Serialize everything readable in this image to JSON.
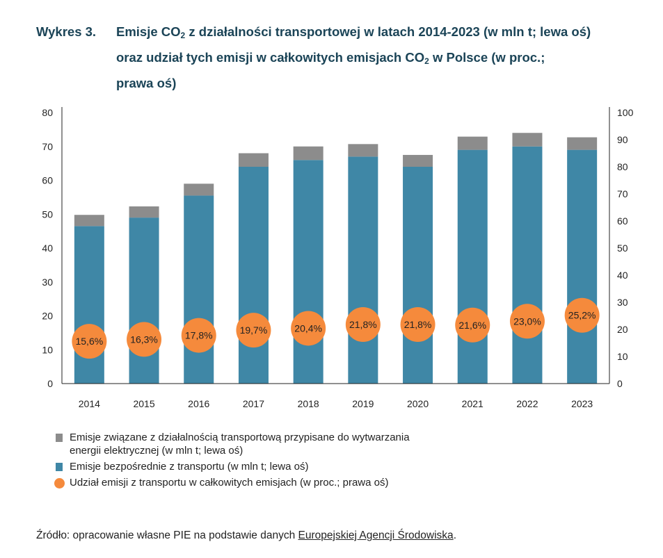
{
  "title": {
    "label": "Wykres 3.",
    "line1_pre": "Emisje CO",
    "line1_sub": "2",
    "line1_post": " z działalności transportowej w latach 2014-2023 (w mln t; lewa oś)",
    "line2_pre": "oraz udział tych emisji w całkowitych emisjach CO",
    "line2_sub": "2",
    "line2_post": " w Polsce (w proc.;",
    "line3": "prawa oś)"
  },
  "colors": {
    "direct": "#3f87a6",
    "electric": "#8c8c8c",
    "share": "#f58a3c",
    "axis": "#222222"
  },
  "chart_data": {
    "type": "bar",
    "stacked": true,
    "categories": [
      "2014",
      "2015",
      "2016",
      "2017",
      "2018",
      "2019",
      "2020",
      "2021",
      "2022",
      "2023"
    ],
    "series": [
      {
        "name": "Emisje bezpośrednie z transportu (w mln t; lewa oś)",
        "axis": "left",
        "values": [
          46.5,
          49,
          55.5,
          64,
          66,
          67,
          64,
          69,
          70,
          69
        ]
      },
      {
        "name": "Emisje związane z działalnością transportową przypisane do wytwarzania energii elektrycznej (w mln t; lewa oś)",
        "axis": "left",
        "values": [
          3.3,
          3.3,
          3.5,
          4,
          4,
          3.7,
          3.5,
          3.9,
          4,
          3.7
        ]
      },
      {
        "name": "Udział emisji z transportu w całkowitych emisjach (w proc.; prawa oś)",
        "axis": "right",
        "type": "scatter",
        "values": [
          15.6,
          16.3,
          17.8,
          19.7,
          20.4,
          21.8,
          21.8,
          21.6,
          23.0,
          25.2
        ],
        "labels": [
          "15,6%",
          "16,3%",
          "17,8%",
          "19,7%",
          "20,4%",
          "21,8%",
          "21,8%",
          "21,6%",
          "23,0%",
          "25,2%"
        ]
      }
    ],
    "left_axis": {
      "range": [
        0,
        80
      ],
      "ticks": [
        "0",
        "10",
        "20",
        "30",
        "40",
        "50",
        "60",
        "70",
        "80"
      ]
    },
    "right_axis": {
      "range": [
        0,
        100
      ],
      "ticks": [
        "0",
        "10",
        "20",
        "30",
        "40",
        "50",
        "60",
        "70",
        "80",
        "90",
        "100"
      ]
    },
    "grid": false,
    "legend_position": "bottom"
  },
  "legend": {
    "electric_line1": "Emisje związane z działalnością transportową przypisane do wytwarzania",
    "electric_line2": "energii elektrycznej (w mln t; lewa oś)",
    "direct": "Emisje bezpośrednie z transportu (w mln t; lewa oś)",
    "share": "Udział emisji z transportu w całkowitych emisjach (w proc.; prawa oś)"
  },
  "source": {
    "prefix": "Źródło: opracowanie własne PIE na podstawie danych ",
    "link": "Europejskiej Agencji Środowiska",
    "suffix": "."
  }
}
